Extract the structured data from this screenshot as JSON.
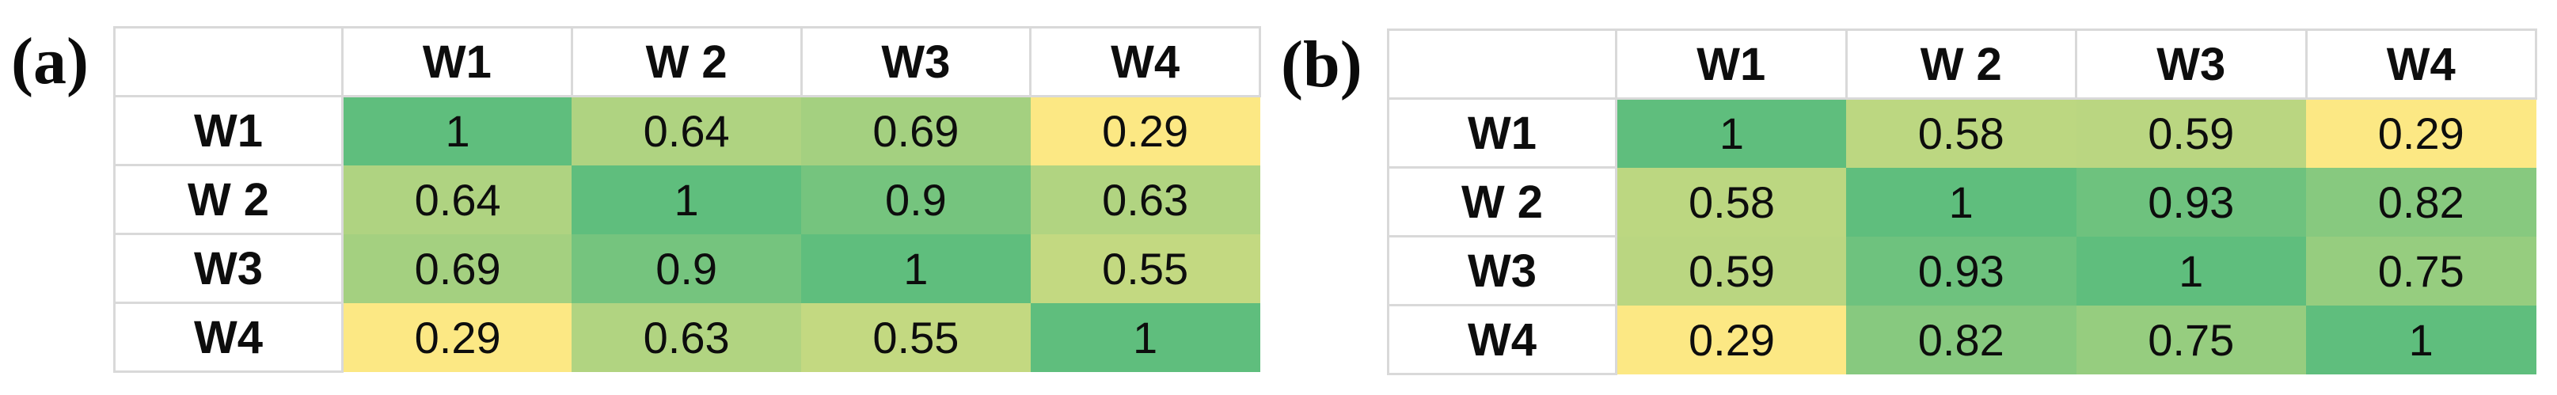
{
  "page": {
    "background": "#ffffff",
    "text_color": "#0d0d0d",
    "grid_color": "#d9d9d9"
  },
  "chart_data": [
    {
      "type": "heatmap",
      "panel_label": "(a)",
      "col_headers": [
        "W1",
        "W 2",
        "W3",
        "W4"
      ],
      "row_headers": [
        "W1",
        "W 2",
        "W3",
        "W4"
      ],
      "values": [
        [
          1,
          0.64,
          0.69,
          0.29
        ],
        [
          0.64,
          1,
          0.9,
          0.63
        ],
        [
          0.69,
          0.9,
          1,
          0.55
        ],
        [
          0.29,
          0.63,
          0.55,
          1
        ]
      ],
      "display": [
        [
          "1",
          "0.64",
          "0.69",
          "0.29"
        ],
        [
          "0.64",
          "1",
          "0.9",
          "0.63"
        ],
        [
          "0.69",
          "0.9",
          "1",
          "0.55"
        ],
        [
          "0.29",
          "0.63",
          "0.55",
          "1"
        ]
      ],
      "colorscale": {
        "min_value": 0.29,
        "max_value": 1,
        "min_color": "#FCE884",
        "max_color": "#5FBE7D"
      },
      "xlabel": "",
      "ylabel": "",
      "legend": "none",
      "grid": "light-gray between white header cells"
    },
    {
      "type": "heatmap",
      "panel_label": "(b)",
      "col_headers": [
        "W1",
        "W 2",
        "W3",
        "W4"
      ],
      "row_headers": [
        "W1",
        "W 2",
        "W3",
        "W4"
      ],
      "values": [
        [
          1,
          0.58,
          0.59,
          0.29
        ],
        [
          0.58,
          1,
          0.93,
          0.82
        ],
        [
          0.59,
          0.93,
          1,
          0.75
        ],
        [
          0.29,
          0.82,
          0.75,
          1
        ]
      ],
      "display": [
        [
          "1",
          "0.58",
          "0.59",
          "0.29"
        ],
        [
          "0.58",
          "1",
          "0.93",
          "0.82"
        ],
        [
          "0.59",
          "0.93",
          "1",
          "0.75"
        ],
        [
          "0.29",
          "0.82",
          "0.75",
          "1"
        ]
      ],
      "colorscale": {
        "min_value": 0.29,
        "max_value": 1,
        "min_color": "#FCE884",
        "max_color": "#5FBE7D"
      },
      "xlabel": "",
      "ylabel": "",
      "legend": "none",
      "grid": "light-gray between white header cells"
    }
  ]
}
